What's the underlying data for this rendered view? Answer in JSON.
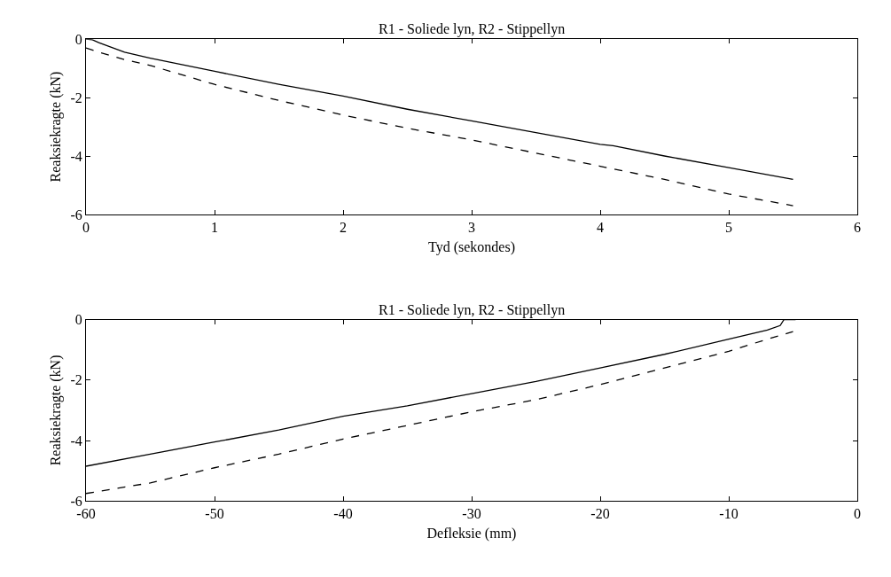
{
  "chart_data": [
    {
      "type": "line",
      "title": "R1 - Soliede lyn, R2 - Stippellyn",
      "xlabel": "Tyd (sekondes)",
      "ylabel": "Reaksiekragte (kN)",
      "xlim": [
        0,
        6
      ],
      "xticks": [
        0,
        1,
        2,
        3,
        4,
        5,
        6
      ],
      "ylim": [
        -6,
        0
      ],
      "yticks": [
        0,
        -2,
        -4,
        -6
      ],
      "series": [
        {
          "color": "#000000",
          "line_style": "solid",
          "x": [
            0,
            0.05,
            0.1,
            0.3,
            0.5,
            1,
            1.5,
            2,
            2.5,
            3,
            3.5,
            4,
            4.1,
            4.5,
            5,
            5.5
          ],
          "values": [
            0,
            -0.02,
            -0.12,
            -0.45,
            -0.65,
            -1.1,
            -1.55,
            -1.95,
            -2.4,
            -2.8,
            -3.2,
            -3.6,
            -3.65,
            -4.0,
            -4.4,
            -4.8
          ]
        },
        {
          "color": "#000000",
          "line_style": "dashed",
          "x": [
            0,
            0.1,
            0.3,
            0.5,
            1,
            1.5,
            2,
            2.5,
            3,
            3.5,
            4,
            4.5,
            5,
            5.5
          ],
          "values": [
            -0.3,
            -0.45,
            -0.7,
            -0.9,
            -1.55,
            -2.1,
            -2.6,
            -3.05,
            -3.45,
            -3.9,
            -4.35,
            -4.8,
            -5.3,
            -5.7
          ]
        }
      ]
    },
    {
      "type": "line",
      "title": "R1 - Soliede lyn, R2 - Stippellyn",
      "xlabel": "Defleksie (mm)",
      "ylabel": "Reaksiekragte (kN)",
      "xlim": [
        -60,
        0
      ],
      "xticks": [
        -60,
        -50,
        -40,
        -30,
        -20,
        -10,
        0
      ],
      "ylim": [
        -6,
        0
      ],
      "yticks": [
        0,
        -2,
        -4,
        -6
      ],
      "series": [
        {
          "color": "#000000",
          "line_style": "solid",
          "x": [
            -60,
            -55,
            -50,
            -45,
            -40,
            -35,
            -30,
            -25,
            -20,
            -15,
            -10,
            -7,
            -6,
            -5.7,
            -4.8
          ],
          "values": [
            -4.85,
            -4.45,
            -4.05,
            -3.65,
            -3.2,
            -2.85,
            -2.45,
            -2.05,
            -1.6,
            -1.15,
            -0.65,
            -0.35,
            -0.2,
            0,
            0
          ]
        },
        {
          "color": "#000000",
          "line_style": "dashed",
          "x": [
            -60,
            -55,
            -50,
            -45,
            -40,
            -35,
            -30,
            -25,
            -20,
            -15,
            -10,
            -7,
            -5
          ],
          "values": [
            -5.75,
            -5.4,
            -4.9,
            -4.45,
            -3.95,
            -3.5,
            -3.05,
            -2.65,
            -2.15,
            -1.6,
            -1.05,
            -0.65,
            -0.4
          ]
        }
      ]
    }
  ]
}
